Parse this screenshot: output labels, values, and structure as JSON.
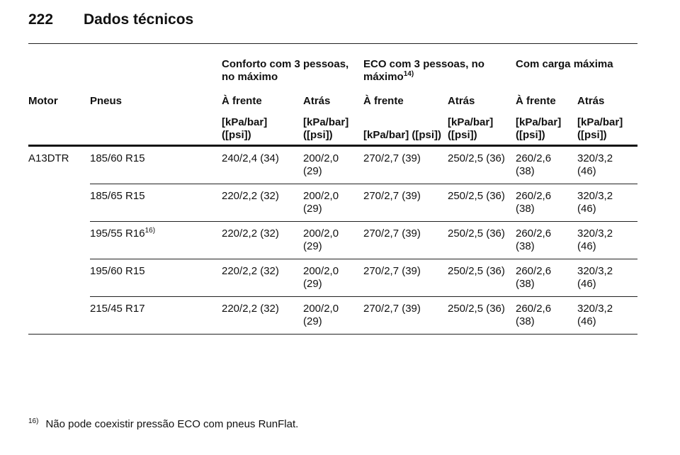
{
  "header": {
    "page_number": "222",
    "title": "Dados técnicos"
  },
  "table": {
    "group_headers": [
      {
        "text": "Conforto com 3 pessoas, no máximo"
      },
      {
        "text": "ECO com 3 pessoas, no máximo",
        "note": "14)"
      },
      {
        "text": "Com carga máxima"
      }
    ],
    "columns": [
      "Motor",
      "Pneus",
      "À frente",
      "Atrás",
      "À frente",
      "Atrás",
      "À frente",
      "Atrás"
    ],
    "units": [
      "[kPa/bar] ([psi])",
      "[kPa/bar] ([psi])",
      "[kPa/bar] ([psi])",
      "[kPa/bar] ([psi])",
      "[kPa/bar] ([psi])",
      "[kPa/bar] ([psi])"
    ],
    "rows": [
      {
        "motor": "A13DTR",
        "tire": "185/60 R15",
        "values": [
          "240/2,4 (34)",
          "200/2,0 (29)",
          "270/2,7 (39)",
          "250/2,5 (36)",
          "260/2,6 (38)",
          "320/3,2 (46)"
        ]
      },
      {
        "tire": "185/65 R15",
        "values": [
          "220/2,2 (32)",
          "200/2,0 (29)",
          "270/2,7 (39)",
          "250/2,5 (36)",
          "260/2,6 (38)",
          "320/3,2 (46)"
        ]
      },
      {
        "tire": "195/55 R16",
        "tire_note": "16)",
        "values": [
          "220/2,2 (32)",
          "200/2,0 (29)",
          "270/2,7 (39)",
          "250/2,5 (36)",
          "260/2,6 (38)",
          "320/3,2 (46)"
        ]
      },
      {
        "tire": "195/60 R15",
        "values": [
          "220/2,2 (32)",
          "200/2,0 (29)",
          "270/2,7 (39)",
          "250/2,5 (36)",
          "260/2,6 (38)",
          "320/3,2 (46)"
        ]
      },
      {
        "tire": "215/45 R17",
        "values": [
          "220/2,2 (32)",
          "200/2,0 (29)",
          "270/2,7 (39)",
          "250/2,5 (36)",
          "260/2,6 (38)",
          "320/3,2 (46)"
        ]
      }
    ]
  },
  "footnote": {
    "mark": "16)",
    "text": "Não pode coexistir pressão ECO com pneus RunFlat."
  }
}
